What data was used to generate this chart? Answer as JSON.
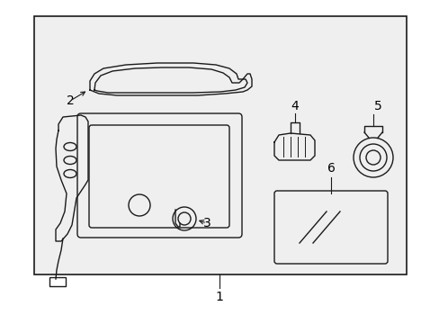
{
  "background_color": "#ffffff",
  "box_color": "#1a1a1a",
  "diagram_bg": "#efefef",
  "line_color": "#1a1a1a",
  "label_color": "#000000",
  "font_size": 10
}
